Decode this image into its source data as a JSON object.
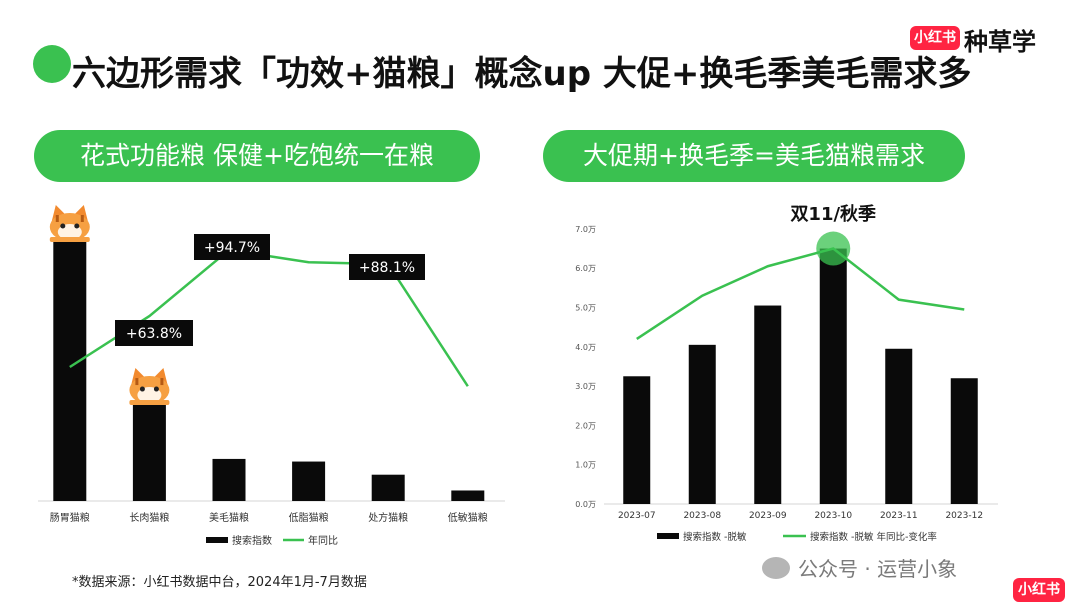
{
  "title": "六边形需求「功效+猫粮」概念up 大促+换毛季美毛需求多",
  "brand": {
    "badge": "小红书",
    "name": "种草学"
  },
  "left_pill": "花式功能粮 保健+吃饱统一在粮",
  "right_pill": "大促期+换毛季=美毛猫粮需求",
  "footer_note": "*数据来源：小红书数据中台，2024年1月-7月数据",
  "watermark": "公众号 · 运营小象",
  "corner_badge": "小红书",
  "colors": {
    "bar": "#0a0a0a",
    "line": "#3ac150",
    "accent": "#3ac150",
    "brand_red": "#ff2442"
  },
  "chart_data": [
    {
      "type": "bar",
      "categories": [
        "肠胃猫粮",
        "长肉猫粮",
        "美毛猫粮",
        "低脂猫粮",
        "处方猫粮",
        "低敏猫粮"
      ],
      "series": [
        {
          "name": "搜索指数",
          "type": "bar",
          "values": [
            100,
            38,
            16,
            15,
            10,
            4
          ]
        },
        {
          "name": "年同比",
          "type": "line",
          "values": [
            40,
            63.8,
            94.7,
            89,
            88.1,
            31
          ]
        }
      ],
      "annotations": [
        "+63.8%",
        "+94.7%",
        "+88.1%"
      ],
      "legend": "bottom",
      "grid": false
    },
    {
      "type": "bar",
      "categories": [
        "2023-07",
        "2023-08",
        "2023-09",
        "2023-10",
        "2023-11",
        "2023-12"
      ],
      "series": [
        {
          "name": "搜索指数 -脱敏",
          "type": "bar",
          "values": [
            3.25,
            4.05,
            5.05,
            6.5,
            3.95,
            3.2
          ]
        },
        {
          "name": "搜索指数 -脱敏 年同比-变化率",
          "type": "line",
          "values": [
            4.2,
            5.3,
            6.05,
            6.5,
            5.2,
            4.95
          ]
        }
      ],
      "y_ticks": [
        "0.0万",
        "1.0万",
        "2.0万",
        "3.0万",
        "4.0万",
        "5.0万",
        "6.0万",
        "7.0万"
      ],
      "ylim": [
        0,
        7
      ],
      "annotations": [
        "双11/秋季"
      ],
      "legend": "bottom",
      "grid": false
    }
  ]
}
